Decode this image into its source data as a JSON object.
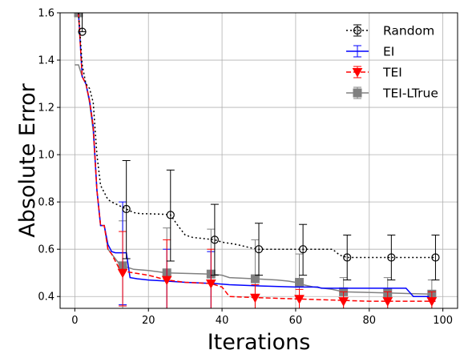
{
  "chart_data": {
    "type": "line",
    "xlabel": "Iterations",
    "ylabel": "Absolute Error",
    "xlim": [
      -4,
      104
    ],
    "ylim": [
      0.35,
      1.6
    ],
    "xticks": [
      0,
      20,
      40,
      60,
      80,
      100
    ],
    "yticks": [
      0.4,
      0.6,
      0.8,
      1.0,
      1.2,
      1.4,
      1.6
    ],
    "xtick_labels": [
      "0",
      "20",
      "40",
      "60",
      "80",
      "100"
    ],
    "ytick_labels": [
      "0.4",
      "0.6",
      "0.8",
      "1.0",
      "1.2",
      "1.4",
      "1.6"
    ],
    "grid": true,
    "legend_position": "top-right",
    "series": [
      {
        "name": "Random",
        "color": "#000000",
        "line_style": "dotted",
        "marker": "open-circle",
        "line": [
          [
            1,
            1.6
          ],
          [
            2,
            1.38
          ],
          [
            3,
            1.3
          ],
          [
            4,
            1.28
          ],
          [
            5,
            1.22
          ],
          [
            6,
            1.0
          ],
          [
            7,
            0.87
          ],
          [
            8,
            0.84
          ],
          [
            9,
            0.81
          ],
          [
            10,
            0.8
          ],
          [
            12,
            0.785
          ],
          [
            14,
            0.77
          ],
          [
            16,
            0.755
          ],
          [
            18,
            0.75
          ],
          [
            20,
            0.75
          ],
          [
            24,
            0.748
          ],
          [
            26,
            0.745
          ],
          [
            28,
            0.7
          ],
          [
            30,
            0.66
          ],
          [
            32,
            0.65
          ],
          [
            35,
            0.645
          ],
          [
            38,
            0.64
          ],
          [
            40,
            0.63
          ],
          [
            44,
            0.62
          ],
          [
            48,
            0.605
          ],
          [
            50,
            0.6
          ],
          [
            60,
            0.6
          ],
          [
            70,
            0.6
          ],
          [
            72,
            0.575
          ],
          [
            74,
            0.565
          ],
          [
            98,
            0.565
          ]
        ],
        "points": [
          {
            "x": 2,
            "y": 1.52,
            "lo": 1.52,
            "hi": 1.6
          },
          {
            "x": 14,
            "y": 0.77,
            "lo": 0.56,
            "hi": 0.975
          },
          {
            "x": 26,
            "y": 0.745,
            "lo": 0.55,
            "hi": 0.935
          },
          {
            "x": 38,
            "y": 0.64,
            "lo": 0.49,
            "hi": 0.79
          },
          {
            "x": 50,
            "y": 0.6,
            "lo": 0.49,
            "hi": 0.71
          },
          {
            "x": 62,
            "y": 0.6,
            "lo": 0.49,
            "hi": 0.705
          },
          {
            "x": 74,
            "y": 0.565,
            "lo": 0.47,
            "hi": 0.66
          },
          {
            "x": 86,
            "y": 0.565,
            "lo": 0.47,
            "hi": 0.66
          },
          {
            "x": 98,
            "y": 0.565,
            "lo": 0.47,
            "hi": 0.66
          }
        ]
      },
      {
        "name": "EI",
        "color": "#0000ff",
        "line_style": "solid",
        "marker": "none",
        "line": [
          [
            1,
            1.6
          ],
          [
            2,
            1.33
          ],
          [
            3,
            1.3
          ],
          [
            4,
            1.23
          ],
          [
            5,
            1.12
          ],
          [
            6,
            0.85
          ],
          [
            7,
            0.7
          ],
          [
            8,
            0.7
          ],
          [
            9,
            0.62
          ],
          [
            10,
            0.59
          ],
          [
            11,
            0.585
          ],
          [
            14,
            0.585
          ],
          [
            15,
            0.48
          ],
          [
            17,
            0.475
          ],
          [
            20,
            0.47
          ],
          [
            25,
            0.465
          ],
          [
            30,
            0.46
          ],
          [
            38,
            0.455
          ],
          [
            42,
            0.45
          ],
          [
            50,
            0.445
          ],
          [
            60,
            0.44
          ],
          [
            66,
            0.44
          ],
          [
            67,
            0.435
          ],
          [
            90,
            0.435
          ],
          [
            92,
            0.4
          ],
          [
            96,
            0.4
          ],
          [
            97,
            0.38
          ],
          [
            98,
            0.38
          ]
        ],
        "points": [
          {
            "x": 13,
            "y": 0.585,
            "lo": 0.365,
            "hi": 0.8
          },
          {
            "x": 25,
            "y": 0.465,
            "lo": 0.35,
            "hi": 0.6
          },
          {
            "x": 37,
            "y": 0.455,
            "lo": 0.35,
            "hi": 0.59
          }
        ]
      },
      {
        "name": "TEI",
        "color": "#ff0000",
        "line_style": "dashed",
        "marker": "triangle-down",
        "line": [
          [
            1,
            1.6
          ],
          [
            2,
            1.33
          ],
          [
            3,
            1.3
          ],
          [
            4,
            1.23
          ],
          [
            5,
            1.12
          ],
          [
            6,
            0.85
          ],
          [
            7,
            0.7
          ],
          [
            8,
            0.7
          ],
          [
            9,
            0.6
          ],
          [
            10,
            0.58
          ],
          [
            12,
            0.52
          ],
          [
            14,
            0.505
          ],
          [
            16,
            0.5
          ],
          [
            20,
            0.49
          ],
          [
            25,
            0.47
          ],
          [
            30,
            0.46
          ],
          [
            37,
            0.455
          ],
          [
            40,
            0.44
          ],
          [
            42,
            0.4
          ],
          [
            50,
            0.395
          ],
          [
            60,
            0.39
          ],
          [
            70,
            0.385
          ],
          [
            80,
            0.38
          ],
          [
            98,
            0.38
          ]
        ],
        "points": [
          {
            "x": 13,
            "y": 0.5,
            "lo": 0.36,
            "hi": 0.675
          },
          {
            "x": 25,
            "y": 0.47,
            "lo": 0.35,
            "hi": 0.64
          },
          {
            "x": 37,
            "y": 0.455,
            "lo": 0.35,
            "hi": 0.6
          },
          {
            "x": 49,
            "y": 0.395,
            "lo": 0.35,
            "hi": 0.45
          },
          {
            "x": 61,
            "y": 0.39,
            "lo": 0.35,
            "hi": 0.43
          },
          {
            "x": 73,
            "y": 0.38,
            "lo": 0.35,
            "hi": 0.42
          },
          {
            "x": 85,
            "y": 0.38,
            "lo": 0.35,
            "hi": 0.42
          },
          {
            "x": 97,
            "y": 0.38,
            "lo": 0.35,
            "hi": 0.42
          }
        ]
      },
      {
        "name": "TEI-LTrue",
        "color": "#808080",
        "line_style": "solid",
        "marker": "square",
        "line": [
          [
            0,
            1.38
          ],
          [
            1,
            1.38
          ],
          [
            2,
            1.33
          ],
          [
            3,
            1.3
          ],
          [
            4,
            1.22
          ],
          [
            5,
            1.1
          ],
          [
            6,
            0.85
          ],
          [
            7,
            0.7
          ],
          [
            8,
            0.7
          ],
          [
            9,
            0.6
          ],
          [
            10,
            0.58
          ],
          [
            12,
            0.54
          ],
          [
            13,
            0.53
          ],
          [
            16,
            0.515
          ],
          [
            20,
            0.51
          ],
          [
            25,
            0.5
          ],
          [
            37,
            0.495
          ],
          [
            40,
            0.49
          ],
          [
            42,
            0.48
          ],
          [
            49,
            0.475
          ],
          [
            55,
            0.47
          ],
          [
            58,
            0.465
          ],
          [
            60,
            0.46
          ],
          [
            62,
            0.45
          ],
          [
            65,
            0.44
          ],
          [
            70,
            0.43
          ],
          [
            73,
            0.42
          ],
          [
            85,
            0.415
          ],
          [
            97,
            0.41
          ],
          [
            98,
            0.41
          ]
        ],
        "points": [
          {
            "x": 1,
            "y": 1.6,
            "lo": 1.6,
            "hi": 1.6
          },
          {
            "x": 13,
            "y": 0.53,
            "lo": 0.35,
            "hi": 0.72
          },
          {
            "x": 25,
            "y": 0.5,
            "lo": 0.35,
            "hi": 0.69
          },
          {
            "x": 37,
            "y": 0.495,
            "lo": 0.35,
            "hi": 0.685
          },
          {
            "x": 49,
            "y": 0.475,
            "lo": 0.35,
            "hi": 0.64
          },
          {
            "x": 61,
            "y": 0.46,
            "lo": 0.35,
            "hi": 0.58
          },
          {
            "x": 73,
            "y": 0.42,
            "lo": 0.35,
            "hi": 0.48
          },
          {
            "x": 85,
            "y": 0.415,
            "lo": 0.35,
            "hi": 0.48
          },
          {
            "x": 97,
            "y": 0.41,
            "lo": 0.35,
            "hi": 0.47
          }
        ]
      }
    ]
  }
}
